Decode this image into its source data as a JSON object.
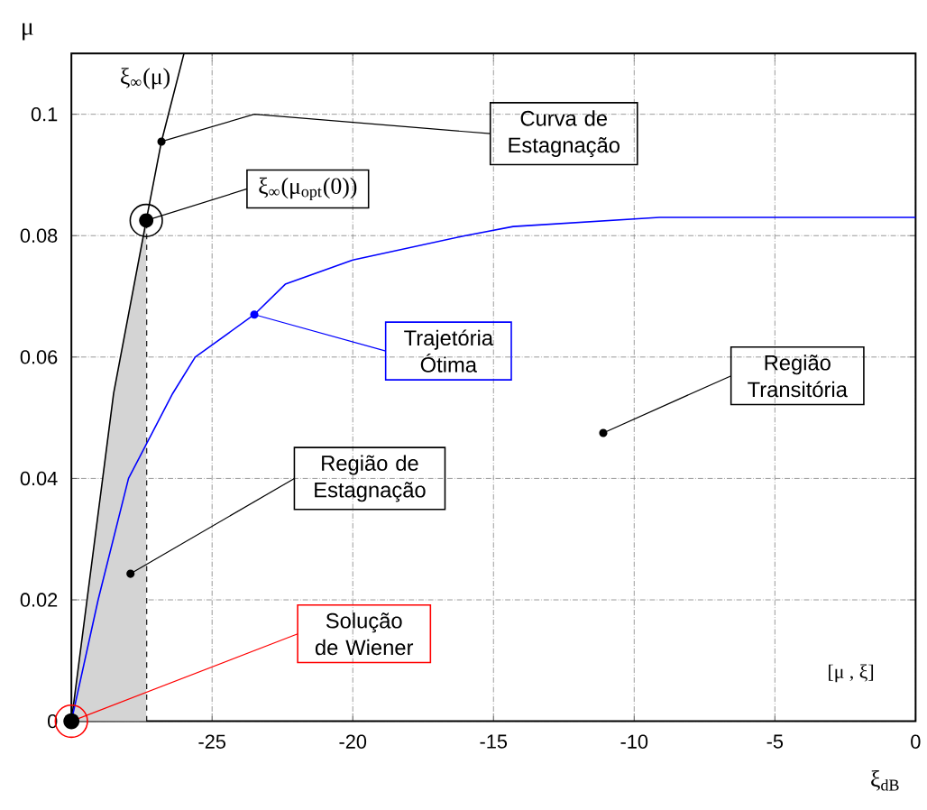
{
  "chart_data": {
    "type": "line",
    "xlabel": "ξ$_{dB}$",
    "ylabel": "μ",
    "xlim": [
      -30,
      0
    ],
    "ylim": [
      0,
      0.11
    ],
    "xticks": [
      -25,
      -20,
      -15,
      -10,
      -5,
      0
    ],
    "yticks": [
      0,
      0.02,
      0.04,
      0.06,
      0.08,
      0.1
    ],
    "grid": true,
    "series": [
      {
        "type": "area",
        "color": "#d4d4d4",
        "x": [
          -30,
          -28.5,
          -27.34
        ],
        "values": [
          0,
          0.054,
          0.0825
        ]
      },
      {
        "color": "#000000",
        "x": [
          -30,
          -28.5,
          -27.34,
          -26.8,
          -26.0
        ],
        "values": [
          0,
          0.054,
          0.0825,
          0.0955,
          0.11
        ]
      },
      {
        "color": "#0000ff",
        "x": [
          -30,
          -29.05,
          -27.97,
          -26.4,
          -25.6,
          -23.5,
          -22.4,
          -20.0,
          -16.0,
          -14.3,
          -9.1,
          0
        ],
        "values": [
          0,
          0.02,
          0.04,
          0.054,
          0.06,
          0.067,
          0.072,
          0.076,
          0.08,
          0.0815,
          0.083,
          0.083
        ]
      }
    ],
    "ref_lines": [
      {
        "axis": "x",
        "value": -27.34,
        "line_style": "dashed"
      }
    ],
    "annotations": [
      {
        "text": "ξ$_{∞}$(μ)",
        "x": -26.0,
        "y": 0.11
      },
      {
        "text": "Curva de Estagnação",
        "x": -26.8,
        "y": 0.0955
      },
      {
        "text": "ξ$_{∞}$(μ$_{opt}$(0))",
        "x": -27.34,
        "y": 0.0825
      },
      {
        "text": "Trajetória Ótima",
        "x": -23.5,
        "y": 0.067
      },
      {
        "text": "Região Transitória",
        "x": -11.1,
        "y": 0.0475
      },
      {
        "text": "Região de Estagnação",
        "x": -27.9,
        "y": 0.0243
      },
      {
        "text": "Solução de Wiener",
        "x": -30,
        "y": 0
      },
      "[μ , ξ]"
    ]
  }
}
